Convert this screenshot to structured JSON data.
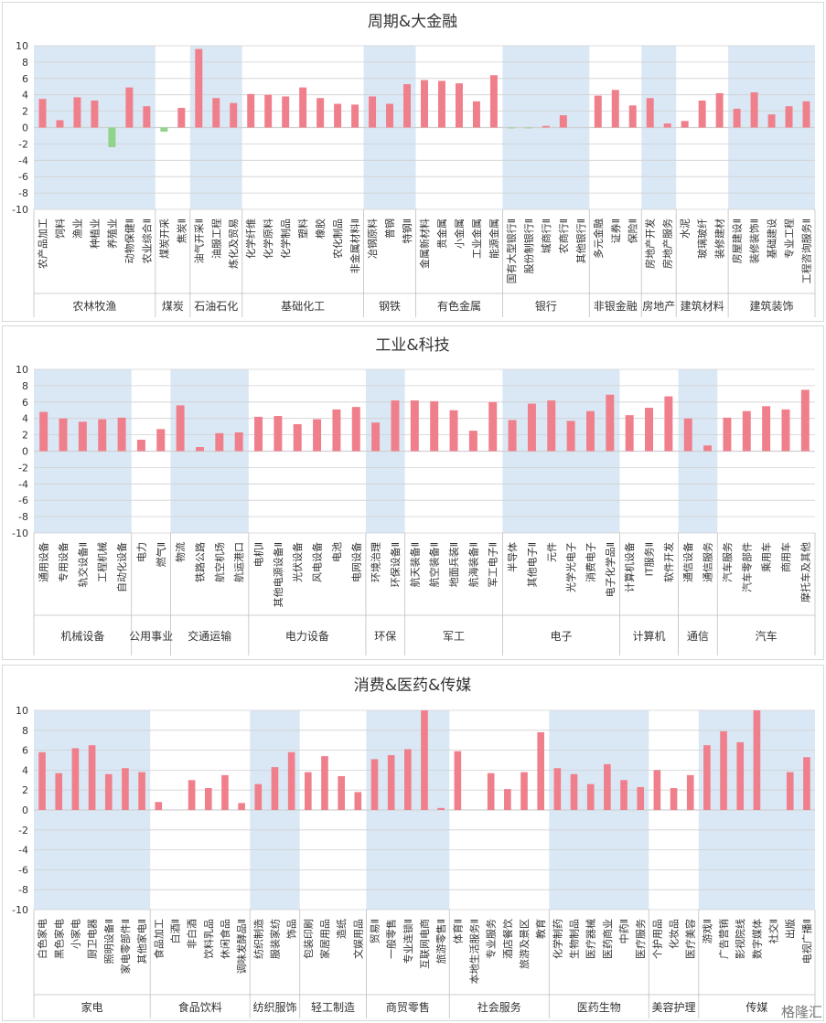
{
  "watermark": "格隆汇",
  "chart_data": [
    {
      "type": "bar",
      "title": "周期&大金融",
      "ylim": [
        -10,
        10
      ],
      "yticks": [
        10,
        8,
        6,
        4,
        2,
        0,
        -2,
        -4,
        -6,
        -8,
        -10
      ],
      "colors": {
        "positive": "#f07f8c",
        "negative": "#92d28b",
        "band": "#dae8f5",
        "grid": "#d0d0d0"
      },
      "grid": true,
      "groups": [
        {
          "name": "农林牧渔",
          "shaded": true,
          "categories": [
            "农产品加工",
            "饲料",
            "渔业",
            "种植业",
            "养殖业",
            "动物保健Ⅱ",
            "农业综合Ⅱ"
          ],
          "values": [
            3.5,
            0.9,
            3.7,
            3.3,
            -2.4,
            4.9,
            2.6
          ]
        },
        {
          "name": "煤炭",
          "shaded": false,
          "categories": [
            "煤炭开采",
            "焦炭Ⅱ"
          ],
          "values": [
            -0.5,
            2.4
          ]
        },
        {
          "name": "石油石化",
          "shaded": true,
          "categories": [
            "油气开采Ⅱ",
            "油服工程",
            "炼化及贸易"
          ],
          "values": [
            9.6,
            3.6,
            3.0
          ]
        },
        {
          "name": "基础化工",
          "shaded": false,
          "categories": [
            "化学纤维",
            "化学原料",
            "化学制品",
            "塑料",
            "橡胶",
            "农化制品",
            "非金属材料Ⅱ"
          ],
          "values": [
            4.1,
            4.0,
            3.8,
            4.9,
            3.6,
            2.9,
            2.8
          ]
        },
        {
          "name": "钢铁",
          "shaded": true,
          "categories": [
            "冶钢原料",
            "普钢",
            "特钢Ⅱ"
          ],
          "values": [
            3.8,
            2.9,
            5.3
          ]
        },
        {
          "name": "有色金属",
          "shaded": false,
          "categories": [
            "金属新材料",
            "贵金属",
            "小金属",
            "工业金属",
            "能源金属"
          ],
          "values": [
            5.8,
            5.7,
            5.4,
            3.2,
            6.4
          ]
        },
        {
          "name": "银行",
          "shaded": true,
          "categories": [
            "国有大型银行Ⅱ",
            "股份制银行Ⅱ",
            "城商行Ⅱ",
            "农商行Ⅱ",
            "其他银行Ⅱ"
          ],
          "values": [
            -0.1,
            -0.1,
            0.2,
            1.5,
            0.0
          ]
        },
        {
          "name": "非银金融",
          "shaded": false,
          "categories": [
            "多元金融",
            "证券Ⅱ",
            "保险Ⅱ"
          ],
          "values": [
            3.9,
            4.6,
            2.7
          ]
        },
        {
          "name": "房地产",
          "shaded": true,
          "categories": [
            "房地产开发",
            "房地产服务"
          ],
          "values": [
            3.6,
            0.5
          ]
        },
        {
          "name": "建筑材料",
          "shaded": false,
          "categories": [
            "水泥",
            "玻璃玻纤",
            "装修建材"
          ],
          "values": [
            0.8,
            3.3,
            4.2
          ]
        },
        {
          "name": "建筑装饰",
          "shaded": true,
          "categories": [
            "房屋建设Ⅱ",
            "装修装饰Ⅱ",
            "基础建设",
            "专业工程",
            "工程咨询服务Ⅱ"
          ],
          "values": [
            2.3,
            4.3,
            1.6,
            2.6,
            3.2
          ]
        }
      ]
    },
    {
      "type": "bar",
      "title": "工业&科技",
      "ylim": [
        -10,
        10
      ],
      "yticks": [
        10,
        8,
        6,
        4,
        2,
        0,
        -2,
        -4,
        -6,
        -8,
        -10
      ],
      "colors": {
        "positive": "#f07f8c",
        "negative": "#92d28b",
        "band": "#dae8f5",
        "grid": "#d0d0d0"
      },
      "grid": true,
      "groups": [
        {
          "name": "机械设备",
          "shaded": true,
          "categories": [
            "通用设备",
            "专用设备",
            "轨交设备Ⅱ",
            "工程机械",
            "自动化设备"
          ],
          "values": [
            4.8,
            4.0,
            3.6,
            3.9,
            4.1
          ]
        },
        {
          "name": "公用事业",
          "shaded": false,
          "categories": [
            "电力",
            "燃气Ⅱ"
          ],
          "values": [
            1.4,
            2.7
          ]
        },
        {
          "name": "交通运输",
          "shaded": true,
          "categories": [
            "物流",
            "铁路公路",
            "航空机场",
            "航运港口"
          ],
          "values": [
            5.6,
            0.5,
            2.2,
            2.3
          ]
        },
        {
          "name": "电力设备",
          "shaded": false,
          "categories": [
            "电机Ⅱ",
            "其他电源设备Ⅱ",
            "光伏设备",
            "风电设备",
            "电池",
            "电网设备"
          ],
          "values": [
            4.2,
            4.3,
            3.3,
            3.9,
            5.1,
            5.4
          ]
        },
        {
          "name": "环保",
          "shaded": true,
          "categories": [
            "环境治理",
            "环保设备Ⅱ"
          ],
          "values": [
            3.5,
            6.2
          ]
        },
        {
          "name": "军工",
          "shaded": false,
          "categories": [
            "航天装备Ⅱ",
            "航空装备Ⅱ",
            "地面兵装Ⅱ",
            "航海装备Ⅱ",
            "军工电子Ⅱ"
          ],
          "values": [
            6.2,
            6.1,
            5.0,
            2.5,
            6.0
          ]
        },
        {
          "name": "电子",
          "shaded": true,
          "categories": [
            "半导体",
            "其他电子Ⅱ",
            "元件",
            "光学光电子",
            "消费电子",
            "电子化学品Ⅱ"
          ],
          "values": [
            3.8,
            5.8,
            6.2,
            3.7,
            4.9,
            6.9
          ]
        },
        {
          "name": "计算机",
          "shaded": false,
          "categories": [
            "计算机设备",
            "IT服务Ⅱ",
            "软件开发"
          ],
          "values": [
            4.4,
            5.3,
            6.7
          ]
        },
        {
          "name": "通信",
          "shaded": true,
          "categories": [
            "通信设备",
            "通信服务"
          ],
          "values": [
            4.0,
            0.7
          ]
        },
        {
          "name": "汽车",
          "shaded": false,
          "categories": [
            "汽车服务",
            "汽车零部件",
            "乘用车",
            "商用车",
            "摩托车及其他"
          ],
          "values": [
            4.1,
            4.9,
            5.5,
            5.1,
            7.5
          ]
        }
      ]
    },
    {
      "type": "bar",
      "title": "消费&医药&传媒",
      "ylim": [
        -10,
        10
      ],
      "yticks": [
        10,
        8,
        6,
        4,
        2,
        0,
        -2,
        -4,
        -6,
        -8,
        -10
      ],
      "colors": {
        "positive": "#f07f8c",
        "negative": "#92d28b",
        "band": "#dae8f5",
        "grid": "#d0d0d0"
      },
      "grid": true,
      "groups": [
        {
          "name": "家电",
          "shaded": true,
          "categories": [
            "白色家电",
            "黑色家电",
            "小家电",
            "厨卫电器",
            "照明设备Ⅱ",
            "家电零部件Ⅱ",
            "其他家电Ⅱ"
          ],
          "values": [
            5.8,
            3.7,
            6.2,
            6.5,
            3.6,
            4.2,
            3.8
          ]
        },
        {
          "name": "食品饮料",
          "shaded": false,
          "categories": [
            "食品加工",
            "白酒Ⅱ",
            "非白酒",
            "饮料乳品",
            "休闲食品",
            "调味发酵品Ⅱ"
          ],
          "values": [
            0.8,
            0.0,
            3.0,
            2.2,
            3.5,
            0.7
          ]
        },
        {
          "name": "纺织服饰",
          "shaded": true,
          "categories": [
            "纺织制造",
            "服装家纺",
            "饰品"
          ],
          "values": [
            2.6,
            4.3,
            5.8
          ]
        },
        {
          "name": "轻工制造",
          "shaded": false,
          "categories": [
            "包装印刷",
            "家居用品",
            "造纸",
            "文娱用品"
          ],
          "values": [
            3.8,
            5.4,
            3.4,
            1.8
          ]
        },
        {
          "name": "商贸零售",
          "shaded": true,
          "categories": [
            "贸易Ⅱ",
            "一般零售",
            "专业连锁Ⅱ",
            "互联网电商",
            "旅游零售Ⅱ"
          ],
          "values": [
            5.1,
            5.5,
            6.1,
            10.0,
            0.2
          ]
        },
        {
          "name": "社会服务",
          "shaded": false,
          "categories": [
            "体育Ⅱ",
            "本地生活服务Ⅱ",
            "专业服务",
            "酒店餐饮",
            "旅游及景区",
            "教育"
          ],
          "values": [
            5.9,
            0.0,
            3.7,
            2.1,
            3.8,
            7.8
          ]
        },
        {
          "name": "医药生物",
          "shaded": true,
          "categories": [
            "化学制药",
            "生物制品",
            "医疗器械",
            "医药商业",
            "中药Ⅱ",
            "医疗服务"
          ],
          "values": [
            4.2,
            3.6,
            2.6,
            4.6,
            3.0,
            2.3
          ]
        },
        {
          "name": "美容护理",
          "shaded": false,
          "categories": [
            "个护用品",
            "化妆品",
            "医疗美容"
          ],
          "values": [
            4.0,
            2.2,
            3.5
          ]
        },
        {
          "name": "传媒",
          "shaded": true,
          "categories": [
            "游戏Ⅱ",
            "广告营销",
            "影视院线",
            "数字媒体",
            "社交Ⅱ",
            "出版",
            "电视广播Ⅱ"
          ],
          "values": [
            6.5,
            7.9,
            6.8,
            10.0,
            0.0,
            3.8,
            5.3
          ]
        }
      ]
    }
  ]
}
